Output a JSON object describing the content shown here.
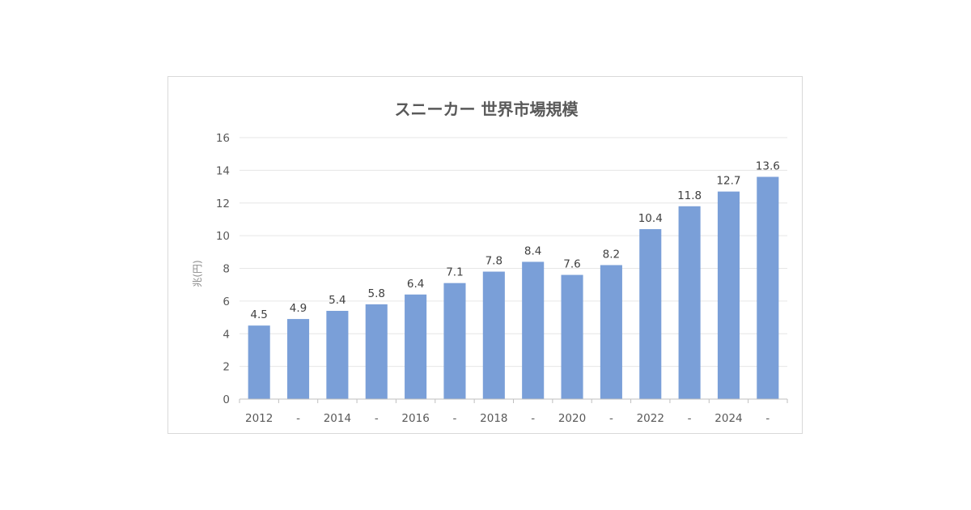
{
  "chart_data": {
    "type": "bar",
    "title": "スニーカー 世界市場規模",
    "xlabel": "",
    "ylabel": "兆(円)",
    "categories": [
      "2012",
      "-",
      "2014",
      "-",
      "2016",
      "-",
      "2018",
      "-",
      "2020",
      "-",
      "2022",
      "-",
      "2024",
      "-"
    ],
    "values": [
      4.5,
      4.9,
      5.4,
      5.8,
      6.4,
      7.1,
      7.8,
      8.4,
      7.6,
      8.2,
      10.4,
      11.8,
      12.7,
      13.6
    ],
    "data_labels": [
      "4.5",
      "4.9",
      "5.4",
      "5.8",
      "6.4",
      "7.1",
      "7.8",
      "8.4",
      "7.6",
      "8.2",
      "10.4",
      "11.8",
      "12.7",
      "13.6"
    ],
    "ylim": [
      0,
      16
    ],
    "yticks": [
      "0",
      "2",
      "4",
      "6",
      "8",
      "10",
      "12",
      "14",
      "16"
    ],
    "grid": true,
    "legend": "none",
    "colors": {
      "bar": "#7a9fd8",
      "grid": "#e6e6e6",
      "axis": "#bfbfbf",
      "frame": "#d9d9d9"
    }
  }
}
